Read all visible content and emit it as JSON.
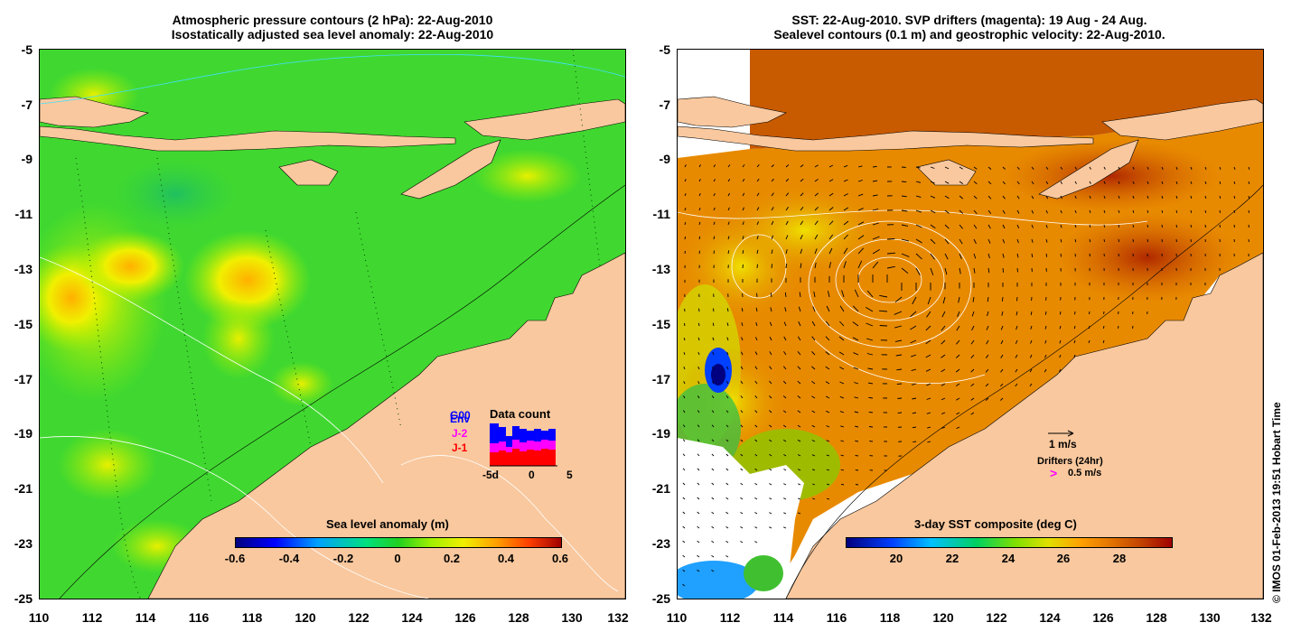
{
  "left_panel": {
    "title_line1": "Atmospheric pressure contours (2 hPa): 22-Aug-2010",
    "title_line2": "Isostatically adjusted sea level anomaly: 22-Aug-2010",
    "colorbar": {
      "title": "Sea level anomaly (m)",
      "ticks": [
        "-0.6",
        "-0.4",
        "-0.2",
        "0",
        "0.2",
        "0.4",
        "0.6"
      ]
    },
    "data_count": {
      "title": "Data count",
      "labels": [
        "G00",
        "Env",
        "J-2",
        "J-1"
      ],
      "ticks": [
        "-5d",
        "0",
        "5"
      ],
      "colors": {
        "G00": "#0000ff",
        "Env": "#0000ff",
        "J-2": "#ff00ff",
        "J-1": "#ff0000"
      }
    }
  },
  "right_panel": {
    "title_line1": "SST: 22-Aug-2010. SVP drifters (magenta): 19 Aug - 24 Aug.",
    "title_line2": "Sealevel contours (0.1 m) and geostrophic velocity: 22-Aug-2010.",
    "colorbar": {
      "title": "3-day SST composite (deg C)",
      "ticks": [
        "20",
        "22",
        "24",
        "26",
        "28"
      ]
    },
    "velocity_legend": "1 m/s",
    "drifter_legend_title": "Drifters (24hr)",
    "drifter_legend_value": "0.5 m/s",
    "drifter_symbol": ">"
  },
  "axes": {
    "y_ticks": [
      "-5",
      "-7",
      "-9",
      "-11",
      "-13",
      "-15",
      "-17",
      "-19",
      "-21",
      "-23",
      "-25"
    ],
    "x_ticks": [
      "110",
      "112",
      "114",
      "116",
      "118",
      "120",
      "122",
      "124",
      "126",
      "128",
      "130",
      "132"
    ]
  },
  "credit": "© IMOS 01-Feb-2013 19:51 Hobart Time",
  "colors": {
    "land": "#f9c89e",
    "sla_ramp": [
      "#00007f",
      "#0000ff",
      "#00a0ff",
      "#00e080",
      "#20d020",
      "#a0f000",
      "#f0f000",
      "#ffa000",
      "#ff4000",
      "#a00000"
    ],
    "sst_ramp": [
      "#00007f",
      "#0040ff",
      "#00c0ff",
      "#00d060",
      "#80e000",
      "#e0e000",
      "#ffa000",
      "#e07000",
      "#c04000",
      "#a00000"
    ]
  }
}
